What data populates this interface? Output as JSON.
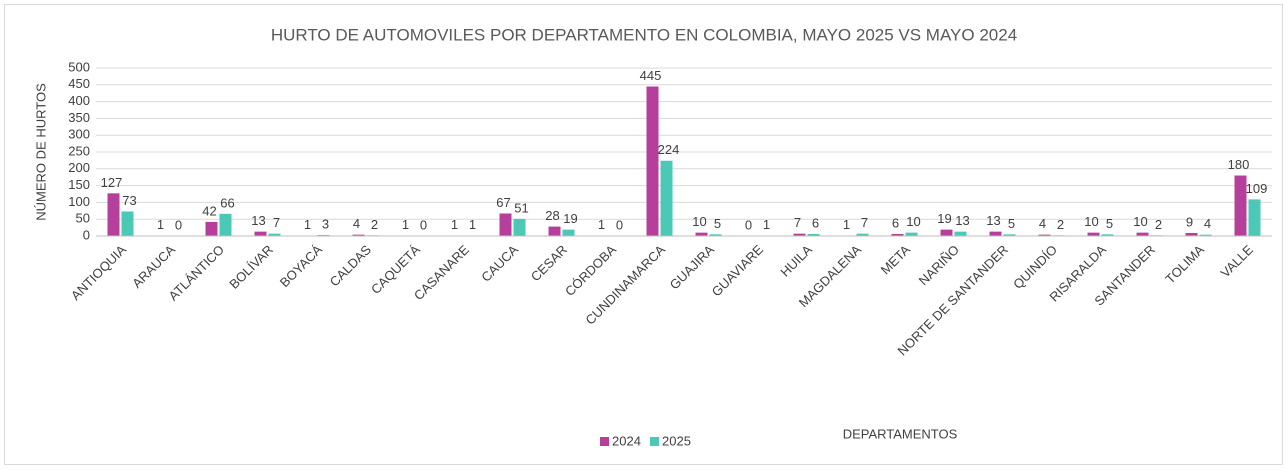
{
  "chart_data": {
    "type": "bar",
    "title": "HURTO DE AUTOMOVILES POR DEPARTAMENTO EN COLOMBIA, MAYO 2025 VS MAYO 2024",
    "x_label": "DEPARTAMENTOS",
    "y_label": "NÚMERO DE HURTOS",
    "categories": [
      "ANTIOQUIA",
      "ARAUCA",
      "ATLÁNTICO",
      "BOLÍVAR",
      "BOYACÁ",
      "CALDAS",
      "CAQUETÁ",
      "CASANARE",
      "CAUCA",
      "CESAR",
      "CÓRDOBA",
      "CUNDINAMARCA",
      "GUAJIRA",
      "GUAVIARE",
      "HUILA",
      "MAGDALENA",
      "META",
      "NARIÑO",
      "NORTE DE SANTANDER",
      "QUINDÍO",
      "RISARALDA",
      "SANTANDER",
      "TOLIMA",
      "VALLE"
    ],
    "series": [
      {
        "name": "2024",
        "color": "#b63f9c",
        "values": [
          127,
          1,
          42,
          13,
          1,
          4,
          1,
          1,
          67,
          28,
          1,
          445,
          10,
          0,
          7,
          1,
          6,
          19,
          13,
          4,
          10,
          10,
          9,
          180
        ]
      },
      {
        "name": "2025",
        "color": "#4cc8b7",
        "values": [
          73,
          0,
          66,
          7,
          3,
          2,
          0,
          1,
          51,
          19,
          0,
          224,
          5,
          1,
          6,
          7,
          10,
          13,
          5,
          2,
          5,
          2,
          4,
          109
        ]
      }
    ],
    "ylim": [
      0,
      500
    ],
    "yticks": [
      0,
      50,
      100,
      150,
      200,
      250,
      300,
      350,
      400,
      450,
      500
    ],
    "grid": true,
    "legend": "bottom"
  }
}
